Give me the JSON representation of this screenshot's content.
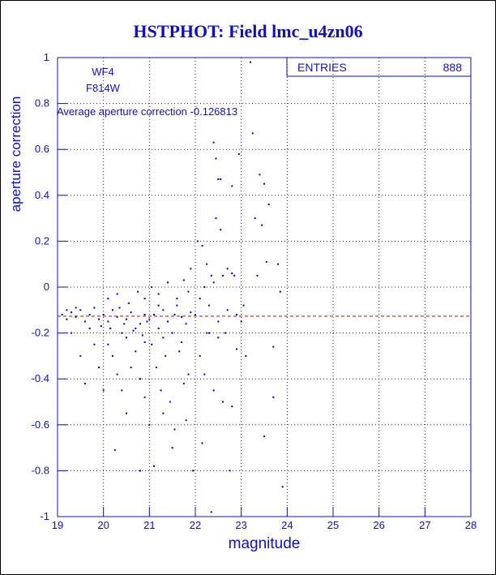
{
  "chart_data": {
    "type": "scatter",
    "title": "HSTPHOT: Field lmc_u4zn06",
    "x_label": "magnitude",
    "y_label": "aperture correction",
    "annotations": [
      "WF4",
      "F814W"
    ],
    "mean_label": "Average aperture correction",
    "mean": -0.126813,
    "stats_label": "ENTRIES",
    "entries": 888,
    "color": "#0000c0",
    "mean_color": "#d00000",
    "grid": true,
    "xlim": [
      19,
      28
    ],
    "xticks": [
      19,
      20,
      21,
      22,
      23,
      24,
      25,
      26,
      27,
      28
    ],
    "ylim": [
      -1,
      1
    ],
    "yticks": [
      -1,
      -0.8,
      -0.6,
      -0.4,
      -0.2,
      0,
      0.2,
      0.4,
      0.6,
      0.8,
      1
    ],
    "x": [
      19.1,
      19.2,
      19.3,
      19.4,
      19.5,
      19.6,
      19.7,
      19.8,
      19.9,
      19.3,
      19.5,
      19.6,
      19.8,
      19.9,
      19.4,
      19.7,
      19.2,
      19.95,
      20.0,
      20.1,
      20.2,
      20.3,
      20.4,
      20.5,
      20.6,
      20.7,
      20.8,
      20.9,
      20.1,
      20.2,
      20.3,
      20.4,
      20.5,
      20.6,
      20.7,
      20.8,
      20.9,
      20.25,
      20.5,
      20.8,
      20.9,
      20.0,
      20.1,
      20.3,
      20.55,
      20.75,
      20.9,
      20.15,
      20.45,
      20.65,
      20.85,
      20.35,
      20.95,
      21.0,
      21.1,
      21.2,
      21.3,
      21.4,
      21.5,
      21.6,
      21.7,
      21.8,
      21.9,
      21.05,
      21.15,
      21.25,
      21.35,
      21.45,
      21.55,
      21.65,
      21.75,
      21.85,
      21.0,
      21.1,
      21.3,
      21.5,
      21.8,
      21.95,
      21.05,
      21.2,
      21.4,
      21.6,
      21.75,
      21.9,
      21.85,
      21.3,
      21.55,
      21.7,
      21.2,
      22.0,
      22.1,
      22.2,
      22.3,
      22.4,
      22.5,
      22.6,
      22.7,
      22.8,
      22.9,
      22.05,
      22.15,
      22.25,
      22.35,
      22.45,
      22.55,
      22.7,
      22.85,
      22.1,
      22.2,
      22.3,
      22.4,
      22.6,
      22.8,
      22.15,
      22.35,
      22.75,
      22.9,
      22.4,
      22.45,
      22.5,
      22.55,
      22.8,
      22.95,
      22.25,
      22.65,
      22.5,
      23.05,
      23.2,
      23.25,
      23.3,
      23.35,
      23.4,
      23.45,
      23.5,
      23.6,
      23.55,
      23.7,
      23.5,
      23.7,
      23.8,
      23.85,
      23.9,
      23.1,
      23.0
    ],
    "y": [
      -0.12,
      -0.14,
      -0.11,
      -0.13,
      -0.1,
      -0.15,
      -0.12,
      -0.09,
      -0.14,
      -0.2,
      -0.3,
      -0.42,
      -0.25,
      -0.35,
      -0.09,
      -0.18,
      -0.1,
      -0.17,
      -0.12,
      -0.15,
      -0.1,
      -0.13,
      -0.2,
      -0.14,
      -0.11,
      -0.18,
      -0.16,
      -0.12,
      -0.25,
      -0.3,
      -0.38,
      -0.45,
      -0.22,
      -0.35,
      -0.28,
      -0.4,
      -0.24,
      -0.71,
      -0.55,
      -0.8,
      -0.48,
      -0.45,
      -0.05,
      -0.03,
      -0.07,
      -0.02,
      -0.05,
      -0.18,
      -0.16,
      -0.19,
      -0.21,
      -0.09,
      -0.15,
      -0.14,
      -0.12,
      -0.18,
      -0.1,
      -0.15,
      -0.2,
      -0.08,
      -0.13,
      -0.16,
      -0.11,
      -0.25,
      -0.35,
      -0.45,
      -0.3,
      -0.5,
      -0.62,
      -0.28,
      -0.42,
      -0.38,
      -0.6,
      -0.78,
      -0.55,
      -0.7,
      -0.58,
      -0.8,
      0,
      -0.03,
      0.02,
      -0.05,
      0.03,
      0.08,
      -0.02,
      -0.22,
      -0.12,
      -0.24,
      -0.08,
      -0.12,
      -0.05,
      0,
      -0.08,
      0.02,
      -0.15,
      0.05,
      -0.1,
      0.06,
      -0.12,
      0.2,
      0.18,
      0.1,
      0.05,
      0.3,
      0.25,
      0.08,
      0.05,
      -0.3,
      -0.38,
      -0.2,
      -0.45,
      -0.5,
      -0.52,
      -0.68,
      -0.98,
      -0.8,
      -0.27,
      0.63,
      0.56,
      0.47,
      0.47,
      0.44,
      0.58,
      -0.2,
      -0.2,
      -0.22,
      -0.08,
      0.98,
      0.67,
      0.3,
      0.05,
      0.49,
      0.27,
      0.45,
      0.36,
      0.11,
      -0.26,
      -0.65,
      -0.48,
      0.1,
      -0.02,
      -0.87,
      -0.3,
      -0.15
    ]
  }
}
